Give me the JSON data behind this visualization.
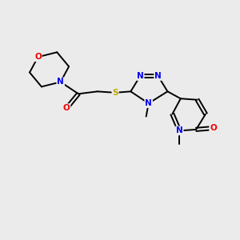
{
  "background_color": "#ebebeb",
  "atom_colors": {
    "C": "#000000",
    "N": "#0000ee",
    "O": "#ee0000",
    "S": "#bbaa00"
  },
  "bond_color": "#000000",
  "bond_width": 1.4,
  "font_size_atom": 7.5
}
